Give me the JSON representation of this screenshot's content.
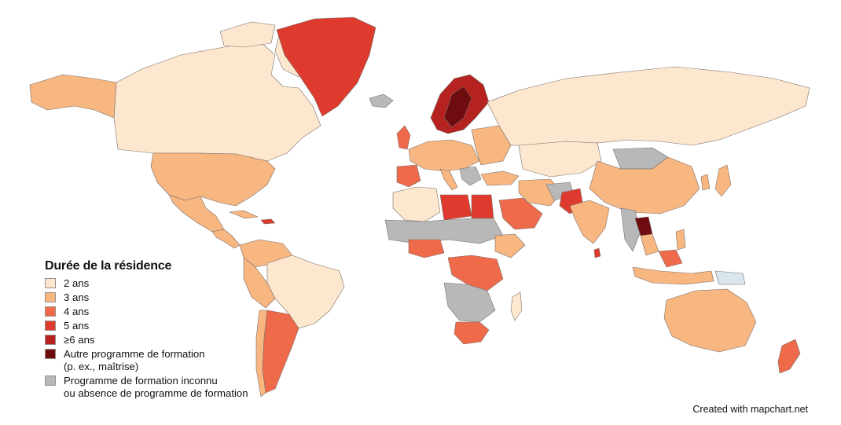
{
  "colors": {
    "background": "#ffffff",
    "border": "#7a6f6a",
    "two_years": "#fde7cf",
    "three_years": "#f8b681",
    "four_years": "#ef6a4a",
    "five_years": "#de3a2e",
    "six_plus_years": "#b5221f",
    "other_program": "#6e0c10",
    "unknown": "#b8b8b8",
    "light_blue": "#d9e6ee"
  },
  "legend": {
    "title": "Durée de la résidence",
    "items": [
      {
        "label": "2 ans",
        "color": "#fde7cf"
      },
      {
        "label": "3 ans",
        "color": "#f8b681"
      },
      {
        "label": "4 ans",
        "color": "#ef6a4a"
      },
      {
        "label": "5 ans",
        "color": "#de3a2e"
      },
      {
        "label": "≥6 ans",
        "color": "#b5221f"
      },
      {
        "label": "Autre programme de formation\n(p. ex., maîtrise)",
        "color": "#6e0c10"
      },
      {
        "label": "Programme de formation inconnu\nou absence de programme de formation",
        "color": "#b8b8b8"
      }
    ]
  },
  "credit": "Created with mapchart.net"
}
